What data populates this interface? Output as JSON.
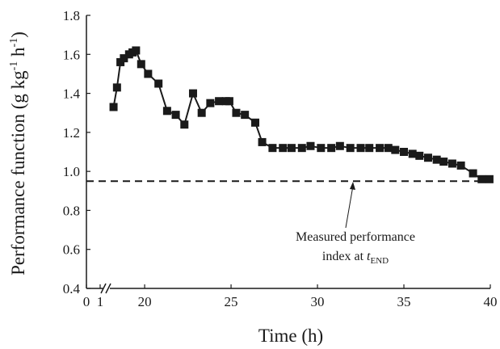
{
  "chart_data": {
    "type": "line",
    "x_label": "Time (h)",
    "y_label": [
      "Performance function (g kg",
      "-1",
      " h",
      "-1",
      ")"
    ],
    "x": [
      18.2,
      18.4,
      18.6,
      18.8,
      19.1,
      19.3,
      19.5,
      19.8,
      20.2,
      20.8,
      21.3,
      21.8,
      22.3,
      22.8,
      23.3,
      23.8,
      24.3,
      24.7,
      24.9,
      25.3,
      25.8,
      26.4,
      26.8,
      27.4,
      28.0,
      28.5,
      29.1,
      29.6,
      30.2,
      30.8,
      31.3,
      31.9,
      32.5,
      33.0,
      33.6,
      34.1,
      34.5,
      35.0,
      35.5,
      35.9,
      36.4,
      36.9,
      37.3,
      37.8,
      38.3,
      39.0,
      39.5,
      39.95
    ],
    "series": [
      {
        "color": "#1a1a1a",
        "values": [
          1.33,
          1.43,
          1.56,
          1.58,
          1.6,
          1.61,
          1.62,
          1.55,
          1.5,
          1.45,
          1.31,
          1.29,
          1.24,
          1.4,
          1.3,
          1.35,
          1.36,
          1.36,
          1.36,
          1.3,
          1.29,
          1.25,
          1.15,
          1.12,
          1.12,
          1.12,
          1.12,
          1.13,
          1.12,
          1.12,
          1.13,
          1.12,
          1.12,
          1.12,
          1.12,
          1.12,
          1.11,
          1.1,
          1.09,
          1.08,
          1.07,
          1.06,
          1.05,
          1.04,
          1.03,
          0.99,
          0.96,
          0.96
        ]
      }
    ],
    "reference_line": 0.95,
    "annotation": [
      "Measured performance",
      "index at ",
      "t",
      "END"
    ],
    "xlim": [
      0,
      40
    ],
    "xbreak": [
      1,
      17.8
    ],
    "xticks": [
      0,
      1,
      20,
      25,
      30,
      35,
      40
    ],
    "ylim": [
      0.4,
      1.8
    ],
    "yticks": [
      0.4,
      0.6,
      0.8,
      {
        "value": 1.0,
        "label": "1.0"
      },
      1.2,
      1.4,
      1.6,
      1.8
    ]
  }
}
